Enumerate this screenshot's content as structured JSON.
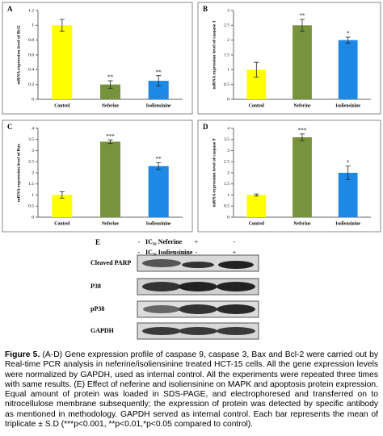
{
  "chart_data": [
    {
      "type": "bar",
      "label": "A",
      "ylabel": "mRNA expression level of Bcl2",
      "categories": [
        "Control",
        "Neferine",
        "Isoliensinine"
      ],
      "values": [
        1.0,
        0.2,
        0.25
      ],
      "errors": [
        0.08,
        0.05,
        0.07
      ],
      "annotations": [
        null,
        "**",
        "**"
      ],
      "colors": [
        "#ffff00",
        "#77933c",
        "#1e88e5"
      ],
      "ylim": [
        0,
        1.2
      ],
      "yticks": [
        0,
        0.2,
        0.4,
        0.6,
        0.8,
        1,
        1.2
      ]
    },
    {
      "type": "bar",
      "label": "B",
      "ylabel": "mRNA expression level of caspase 3",
      "categories": [
        "Control",
        "Neferine",
        "Isoliensinine"
      ],
      "values": [
        1.0,
        2.5,
        2.0
      ],
      "errors": [
        0.25,
        0.2,
        0.1
      ],
      "annotations": [
        null,
        "**",
        "*"
      ],
      "colors": [
        "#ffff00",
        "#77933c",
        "#1e88e5"
      ],
      "ylim": [
        0,
        3
      ],
      "yticks": [
        0,
        0.5,
        1,
        1.5,
        2,
        2.5,
        3
      ]
    },
    {
      "type": "bar",
      "label": "C",
      "ylabel": "mRNA expression level of Bax",
      "categories": [
        "Control",
        "Neferine",
        "Isoliensinine"
      ],
      "values": [
        1.0,
        3.4,
        2.3
      ],
      "errors": [
        0.15,
        0.08,
        0.15
      ],
      "annotations": [
        null,
        "***",
        "**"
      ],
      "colors": [
        "#ffff00",
        "#77933c",
        "#1e88e5"
      ],
      "ylim": [
        0,
        4
      ],
      "yticks": [
        0,
        0.5,
        1,
        1.5,
        2,
        2.5,
        3,
        3.5,
        4
      ]
    },
    {
      "type": "bar",
      "label": "D",
      "ylabel": "mRNA expression level of caspase 9",
      "categories": [
        "Control",
        "Neferine",
        "Isoliensinine"
      ],
      "values": [
        1.0,
        3.6,
        2.0
      ],
      "errors": [
        0.05,
        0.15,
        0.3
      ],
      "annotations": [
        null,
        "***",
        "*"
      ],
      "colors": [
        "#ffff00",
        "#77933c",
        "#1e88e5"
      ],
      "ylim": [
        0,
        4
      ],
      "yticks": [
        0,
        0.5,
        1,
        1.5,
        2,
        2.5,
        3,
        3.5,
        4
      ]
    }
  ],
  "blot": {
    "label": "E",
    "conditions": [
      {
        "name": "IC₅₀ Neferine",
        "signs": [
          "-",
          "+",
          "-"
        ]
      },
      {
        "name": "IC₅₀ Isoliensinine",
        "signs": [
          "-",
          "-",
          "+"
        ]
      }
    ],
    "bands": [
      "Cleaved PARP",
      "P38",
      "pP38",
      "GAPDH"
    ]
  },
  "caption": {
    "label": "Figure 5.",
    "text": "(A-D) Gene expression profile of caspase 9, caspase 3, Bax and Bcl-2 were carried out by Real-time PCR analysis in neferine/isoliensinine treated HCT-15 cells. All the gene expression levels were normalized by GAPDH, used as internal control. All the experiments were repeated three times with same results. (E) Effect of neferine and isoliensinine on MAPK and apoptosis protein expression. Equal amount of protein was loaded in SDS-PAGE, and electrophoresed and transferred on to nitrocellulose membrane subsequently; the expression of protein was detected by specific antibody as mentioned in methodology. GAPDH served as internal control. Each bar represents the mean of triplicate ± S.D (***p<0.001, **p<0.01,*p<0.05 compared to control)."
  }
}
